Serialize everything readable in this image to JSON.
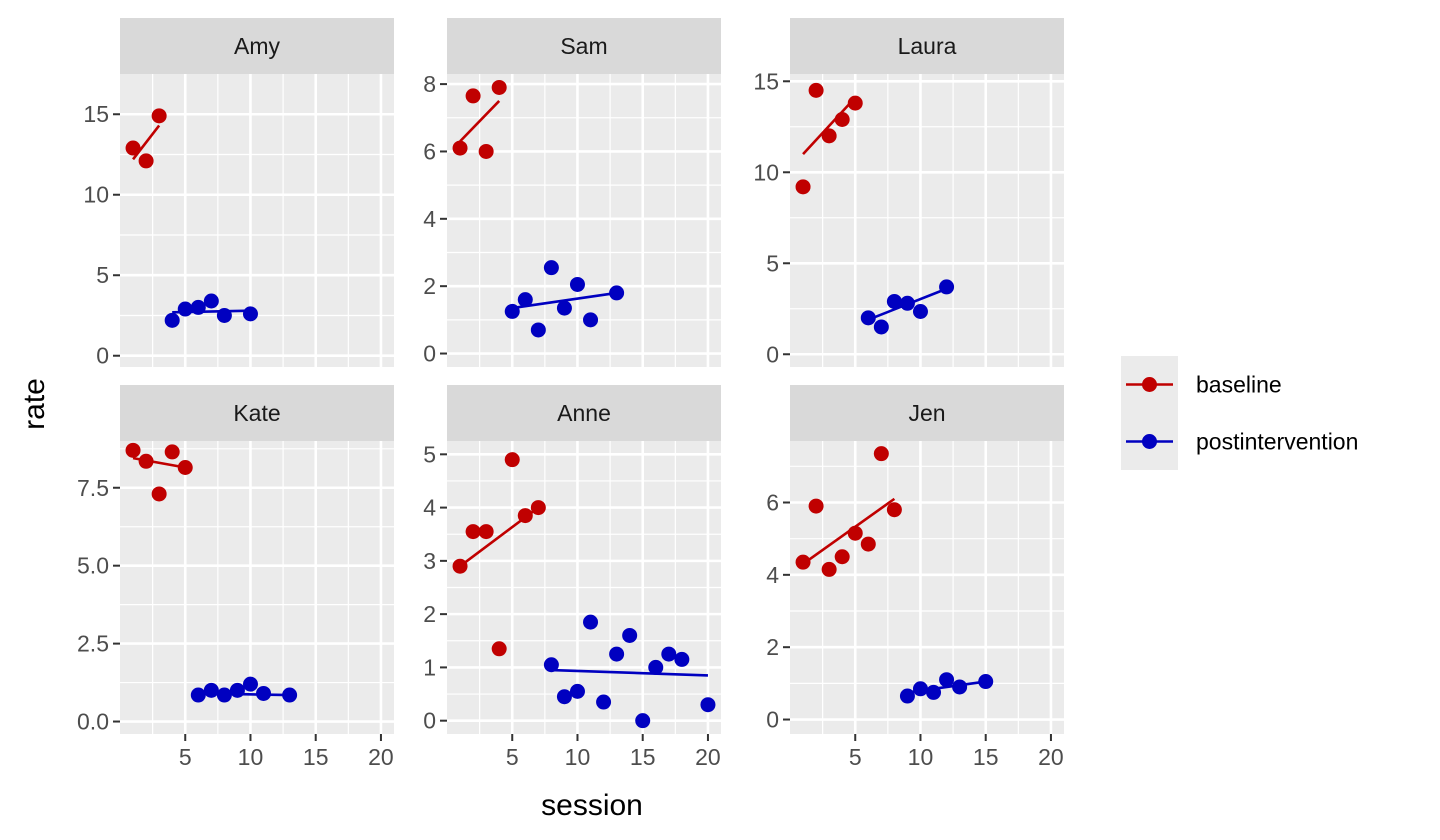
{
  "chart_data": {
    "type": "scatter",
    "facet_layout": "3 columns x 2 rows, free y scales, shared x scale",
    "xlabel": "session",
    "ylabel": "rate",
    "xlim": [
      0,
      21
    ],
    "x_ticks": [
      5,
      10,
      15,
      20
    ],
    "grid": true,
    "legend_position": "right",
    "series_styles": [
      {
        "name": "baseline",
        "color": "#c00000"
      },
      {
        "name": "postintervention",
        "color": "#0000c0"
      }
    ],
    "panels": [
      {
        "title": "Amy",
        "ylim": [
          -0.7,
          17.5
        ],
        "y_ticks": [
          0,
          5,
          10,
          15
        ],
        "y_tick_labels": [
          "0",
          "5",
          "10",
          "15"
        ],
        "series": [
          {
            "name": "baseline",
            "points": [
              [
                1,
                12.9
              ],
              [
                2,
                12.1
              ],
              [
                3,
                14.9
              ]
            ],
            "trend": [
              [
                1,
                12.2
              ],
              [
                3,
                14.3
              ]
            ]
          },
          {
            "name": "postintervention",
            "points": [
              [
                4,
                2.2
              ],
              [
                5,
                2.9
              ],
              [
                6,
                3.0
              ],
              [
                7,
                3.4
              ],
              [
                8,
                2.5
              ],
              [
                10,
                2.6
              ]
            ],
            "trend": [
              [
                4,
                2.7
              ],
              [
                10,
                2.8
              ]
            ]
          }
        ]
      },
      {
        "title": "Sam",
        "ylim": [
          -0.4,
          8.3
        ],
        "y_ticks": [
          0,
          2,
          4,
          6,
          8
        ],
        "y_tick_labels": [
          "0",
          "2",
          "4",
          "6",
          "8"
        ],
        "series": [
          {
            "name": "baseline",
            "points": [
              [
                1,
                6.1
              ],
              [
                2,
                7.65
              ],
              [
                3,
                6.0
              ],
              [
                4,
                7.9
              ]
            ],
            "trend": [
              [
                1,
                6.3
              ],
              [
                4,
                7.5
              ]
            ]
          },
          {
            "name": "postintervention",
            "points": [
              [
                5,
                1.25
              ],
              [
                6,
                1.6
              ],
              [
                7,
                0.7
              ],
              [
                8,
                2.55
              ],
              [
                9,
                1.35
              ],
              [
                10,
                2.05
              ],
              [
                11,
                1.0
              ],
              [
                13,
                1.8
              ]
            ],
            "trend": [
              [
                5,
                1.35
              ],
              [
                13,
                1.8
              ]
            ]
          }
        ]
      },
      {
        "title": "Laura",
        "ylim": [
          -0.7,
          15.4
        ],
        "y_ticks": [
          0,
          5,
          10,
          15
        ],
        "y_tick_labels": [
          "0",
          "5",
          "10",
          "15"
        ],
        "series": [
          {
            "name": "baseline",
            "points": [
              [
                1,
                9.2
              ],
              [
                2,
                14.5
              ],
              [
                3,
                12.0
              ],
              [
                4,
                12.9
              ],
              [
                5,
                13.8
              ]
            ],
            "trend": [
              [
                1,
                11.0
              ],
              [
                5,
                14.1
              ]
            ]
          },
          {
            "name": "postintervention",
            "points": [
              [
                6,
                2.0
              ],
              [
                7,
                1.5
              ],
              [
                8,
                2.9
              ],
              [
                9,
                2.8
              ],
              [
                10,
                2.35
              ],
              [
                12,
                3.7
              ]
            ],
            "trend": [
              [
                6,
                1.9
              ],
              [
                12,
                3.6
              ]
            ]
          }
        ]
      },
      {
        "title": "Kate",
        "ylim": [
          -0.4,
          9.0
        ],
        "y_ticks": [
          0,
          2.5,
          5,
          7.5
        ],
        "y_tick_labels": [
          "0.0",
          "2.5",
          "5.0",
          "7.5"
        ],
        "series": [
          {
            "name": "baseline",
            "points": [
              [
                1,
                8.7
              ],
              [
                2,
                8.35
              ],
              [
                3,
                7.3
              ],
              [
                4,
                8.65
              ],
              [
                5,
                8.15
              ]
            ],
            "trend": [
              [
                1,
                8.45
              ],
              [
                5,
                8.15
              ]
            ]
          },
          {
            "name": "postintervention",
            "points": [
              [
                6,
                0.85
              ],
              [
                7,
                1.0
              ],
              [
                8,
                0.85
              ],
              [
                9,
                1.0
              ],
              [
                10,
                1.2
              ],
              [
                11,
                0.9
              ],
              [
                13,
                0.85
              ]
            ],
            "trend": [
              [
                6,
                0.9
              ],
              [
                13,
                0.85
              ]
            ]
          }
        ]
      },
      {
        "title": "Anne",
        "ylim": [
          -0.25,
          5.25
        ],
        "y_ticks": [
          0,
          1,
          2,
          3,
          4,
          5
        ],
        "y_tick_labels": [
          "0",
          "1",
          "2",
          "3",
          "4",
          "5"
        ],
        "series": [
          {
            "name": "baseline",
            "points": [
              [
                1,
                2.9
              ],
              [
                2,
                3.55
              ],
              [
                3,
                3.55
              ],
              [
                4,
                1.35
              ],
              [
                5,
                4.9
              ],
              [
                6,
                3.85
              ],
              [
                7,
                4.0
              ]
            ],
            "trend": [
              [
                1,
                2.9
              ],
              [
                7,
                4.0
              ]
            ]
          },
          {
            "name": "postintervention",
            "points": [
              [
                8,
                1.05
              ],
              [
                9,
                0.45
              ],
              [
                10,
                0.55
              ],
              [
                11,
                1.85
              ],
              [
                12,
                0.35
              ],
              [
                13,
                1.25
              ],
              [
                14,
                1.6
              ],
              [
                15,
                0.0
              ],
              [
                16,
                1.0
              ],
              [
                17,
                1.25
              ],
              [
                18,
                1.15
              ],
              [
                20,
                0.3
              ]
            ],
            "trend": [
              [
                8,
                0.95
              ],
              [
                20,
                0.85
              ]
            ]
          }
        ]
      },
      {
        "title": "Jen",
        "ylim": [
          -0.4,
          7.7
        ],
        "y_ticks": [
          0,
          2,
          4,
          6
        ],
        "y_tick_labels": [
          "0",
          "2",
          "4",
          "6"
        ],
        "series": [
          {
            "name": "baseline",
            "points": [
              [
                1,
                4.35
              ],
              [
                2,
                5.9
              ],
              [
                3,
                4.15
              ],
              [
                4,
                4.5
              ],
              [
                5,
                5.15
              ],
              [
                6,
                4.85
              ],
              [
                7,
                7.35
              ],
              [
                8,
                5.8
              ]
            ],
            "trend": [
              [
                1,
                4.3
              ],
              [
                8,
                6.1
              ]
            ]
          },
          {
            "name": "postintervention",
            "points": [
              [
                9,
                0.65
              ],
              [
                10,
                0.85
              ],
              [
                11,
                0.75
              ],
              [
                12,
                1.1
              ],
              [
                13,
                0.9
              ],
              [
                15,
                1.05
              ]
            ],
            "trend": [
              [
                9,
                0.75
              ],
              [
                15,
                1.05
              ]
            ]
          }
        ]
      }
    ]
  },
  "legend": {
    "items": [
      {
        "label": "baseline",
        "color": "#c00000"
      },
      {
        "label": "postintervention",
        "color": "#0000c0"
      }
    ]
  }
}
